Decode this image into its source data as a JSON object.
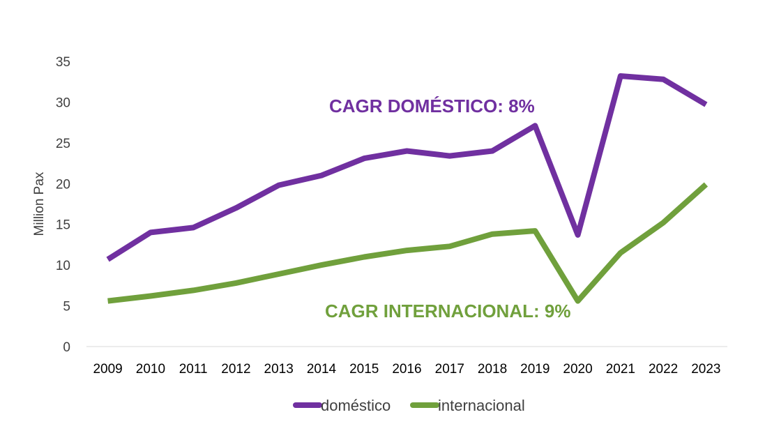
{
  "chart_data": {
    "type": "line",
    "title": "",
    "xlabel": "",
    "ylabel": "Million Pax",
    "ylim": [
      0,
      35
    ],
    "yticks": [
      0,
      5,
      10,
      15,
      20,
      25,
      30,
      35
    ],
    "grid": false,
    "legend_position": "bottom",
    "categories": [
      "2009",
      "2010",
      "2011",
      "2012",
      "2013",
      "2014",
      "2015",
      "2016",
      "2017",
      "2018",
      "2019",
      "2020",
      "2021",
      "2022",
      "2023"
    ],
    "series": [
      {
        "name": "doméstico",
        "color": "#7030A0",
        "values": [
          10.7,
          14.0,
          14.6,
          17.0,
          19.8,
          21.0,
          23.1,
          24.0,
          23.4,
          24.0,
          27.1,
          13.7,
          33.2,
          32.8,
          29.7
        ]
      },
      {
        "name": "internacional",
        "color": "#70A03C",
        "values": [
          5.6,
          6.2,
          6.9,
          7.8,
          8.9,
          10.0,
          11.0,
          11.8,
          12.3,
          13.8,
          14.2,
          5.6,
          11.5,
          15.2,
          19.9
        ]
      }
    ],
    "annotations": [
      {
        "text": "CAGR DOMÉSTICO: 8%",
        "series": "doméstico",
        "color": "#7030A0"
      },
      {
        "text": "CAGR INTERNACIONAL: 9%",
        "series": "internacional",
        "color": "#70A03C"
      }
    ]
  }
}
